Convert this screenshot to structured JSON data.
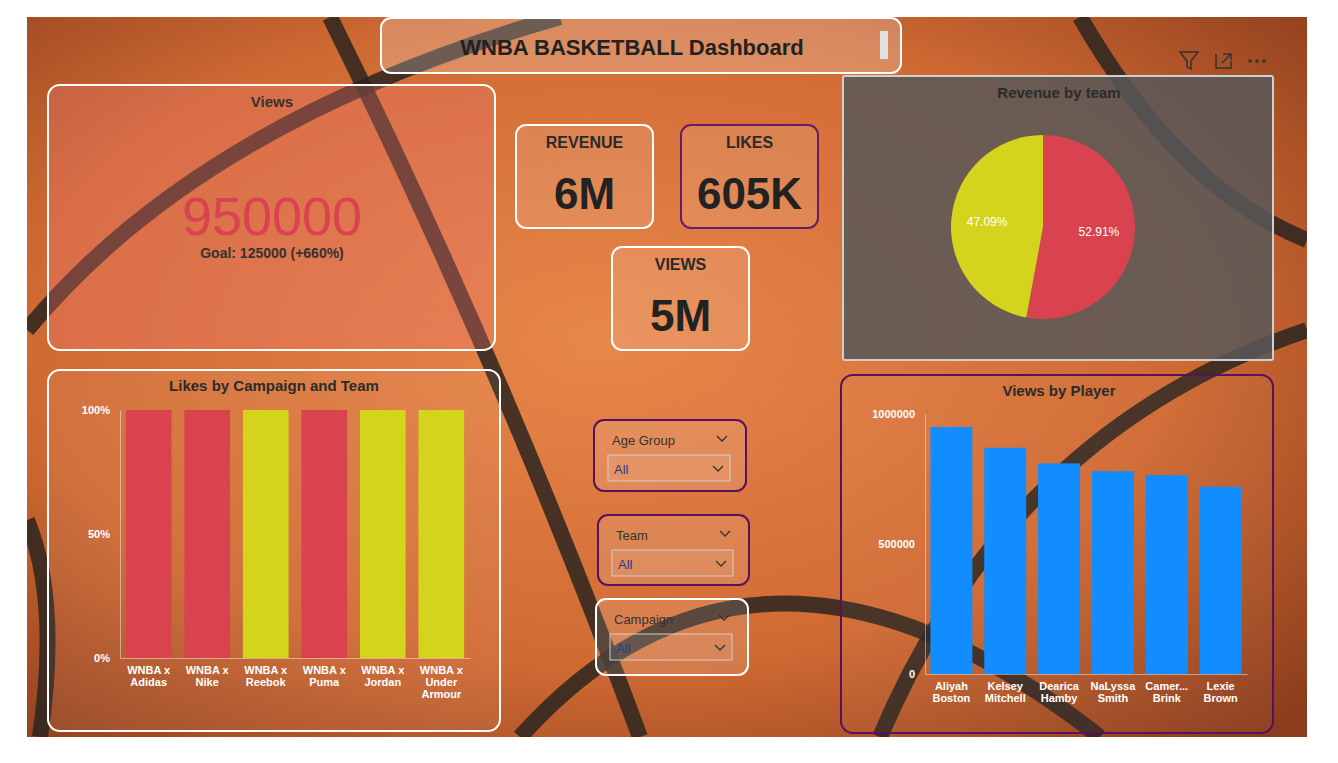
{
  "title": "WNBA BASKETBALL Dashboard",
  "cards": [
    {
      "title": "REVENUE",
      "value": "6M"
    },
    {
      "title": "LIKES",
      "value": "605K"
    },
    {
      "title": "VIEWS",
      "value": "5M"
    }
  ],
  "slicers": [
    {
      "label": "Age Group",
      "value": "All"
    },
    {
      "label": "Team",
      "value": "All"
    },
    {
      "label": "Campaign",
      "value": "All"
    }
  ],
  "chart_data": [
    {
      "type": "kpi",
      "title": "Views",
      "values": [
        950000
      ],
      "subtitle": "Goal: 125000 (+660%)",
      "color": "#d9434f"
    },
    {
      "type": "pie",
      "title": "Revenue by team",
      "categories": [
        null,
        null
      ],
      "values": [
        52.91,
        47.09
      ],
      "value_labels": [
        "52.91%",
        "47.09%"
      ],
      "colors": [
        "#d9434f",
        "#d5d41c"
      ],
      "data_labels": true
    },
    {
      "type": "bar",
      "title": "Likes by Campaign and Team",
      "categories": [
        "WNBA x Adidas",
        "WNBA x Nike",
        "WNBA x Reebok",
        "WNBA x Puma",
        "WNBA x Jordan",
        "WNBA x Under Armour"
      ],
      "series": [
        {
          "color": "#d9434f",
          "values": [
            100,
            100,
            0,
            100,
            0,
            0
          ]
        },
        {
          "color": "#d5d41c",
          "values": [
            0,
            0,
            100,
            0,
            100,
            100
          ]
        }
      ],
      "stacked": true,
      "ylim": [
        0,
        100
      ],
      "yticks": [
        {
          "value": 0,
          "label": "0%"
        },
        {
          "value": 50,
          "label": "50%"
        },
        {
          "value": 100,
          "label": "100%"
        }
      ],
      "grid": false
    },
    {
      "type": "bar",
      "title": "Views by Player",
      "categories": [
        "Aliyah Boston",
        "Kelsey Mitchell",
        "Dearica Hamby",
        "NaLyssa Smith",
        "Camer... Brink",
        "Lexie Brown"
      ],
      "values": [
        950000,
        870000,
        810000,
        780000,
        765000,
        720000
      ],
      "color": "#118dff",
      "ylim": [
        0,
        1000000
      ],
      "yticks": [
        0,
        500000,
        1000000
      ],
      "grid": false
    }
  ]
}
